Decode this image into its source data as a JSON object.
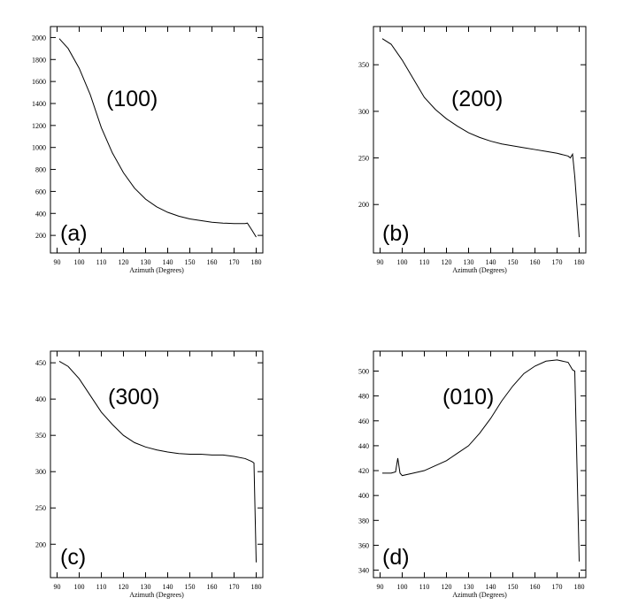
{
  "chart_data": [
    {
      "type": "line",
      "x_label": "Azimuth (Degrees)",
      "annotations": [
        "(100)",
        "(a)"
      ],
      "color": "#000000",
      "x": [
        91,
        95,
        100,
        105,
        110,
        115,
        120,
        125,
        130,
        135,
        140,
        145,
        150,
        155,
        160,
        165,
        170,
        175,
        176,
        178,
        180
      ],
      "values": [
        1990,
        1900,
        1720,
        1480,
        1180,
        950,
        770,
        630,
        530,
        460,
        410,
        375,
        350,
        335,
        320,
        312,
        308,
        308,
        312,
        250,
        185
      ],
      "xlim": [
        87,
        183
      ],
      "xticks": [
        90,
        100,
        110,
        120,
        130,
        140,
        150,
        160,
        170,
        180
      ],
      "ylim": [
        40,
        2100
      ],
      "yticks": [
        200,
        400,
        600,
        800,
        1000,
        1200,
        1400,
        1600,
        1800,
        2000
      ]
    },
    {
      "type": "line",
      "x_label": "Azimuth (Degrees)",
      "annotations": [
        "(200)",
        "(b)"
      ],
      "color": "#000000",
      "x": [
        91,
        95,
        100,
        105,
        110,
        115,
        120,
        125,
        130,
        135,
        140,
        145,
        150,
        155,
        160,
        165,
        170,
        175,
        176,
        177,
        178,
        180
      ],
      "values": [
        378,
        372,
        355,
        335,
        315,
        302,
        292,
        284,
        277,
        272,
        268,
        265,
        263,
        261,
        259,
        257,
        255,
        252,
        250,
        254,
        230,
        165
      ],
      "xlim": [
        87,
        183
      ],
      "xticks": [
        90,
        100,
        110,
        120,
        130,
        140,
        150,
        160,
        170,
        180
      ],
      "ylim": [
        148,
        391
      ],
      "yticks": [
        200,
        250,
        300,
        350
      ]
    },
    {
      "type": "line",
      "x_label": "Azimuth (Degrees)",
      "annotations": [
        "(300)",
        "(c)"
      ],
      "color": "#000000",
      "x": [
        91,
        95,
        100,
        105,
        110,
        115,
        120,
        125,
        130,
        135,
        140,
        145,
        150,
        155,
        160,
        165,
        170,
        175,
        178,
        179,
        180
      ],
      "values": [
        452,
        445,
        428,
        405,
        382,
        365,
        350,
        340,
        334,
        330,
        327,
        325,
        324,
        324,
        323,
        323,
        321,
        318,
        314,
        312,
        175
      ],
      "xlim": [
        87,
        183
      ],
      "xticks": [
        90,
        100,
        110,
        120,
        130,
        140,
        150,
        160,
        170,
        180
      ],
      "ylim": [
        154,
        466
      ],
      "yticks": [
        200,
        250,
        300,
        350,
        400,
        450
      ]
    },
    {
      "type": "line",
      "x_label": "Azimuth (Degrees)",
      "annotations": [
        "(010)",
        "(d)"
      ],
      "color": "#000000",
      "x": [
        91,
        95,
        97,
        98,
        99,
        100,
        105,
        110,
        115,
        120,
        125,
        130,
        135,
        140,
        145,
        150,
        155,
        160,
        165,
        170,
        175,
        177,
        178,
        180
      ],
      "values": [
        418,
        418,
        419,
        430,
        418,
        416,
        418,
        420,
        424,
        428,
        434,
        440,
        450,
        462,
        476,
        488,
        498,
        504,
        508,
        509,
        507,
        501,
        500,
        347
      ],
      "xlim": [
        87,
        183
      ],
      "xticks": [
        90,
        100,
        110,
        120,
        130,
        140,
        150,
        160,
        170,
        180
      ],
      "ylim": [
        334,
        516
      ],
      "yticks": [
        340,
        360,
        380,
        400,
        420,
        440,
        460,
        480,
        500
      ]
    }
  ]
}
